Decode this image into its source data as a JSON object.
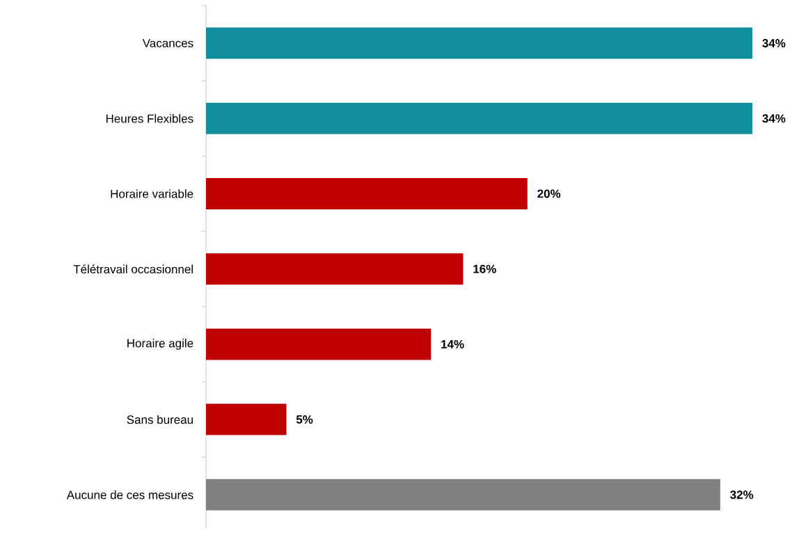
{
  "chart_data": {
    "type": "bar",
    "orientation": "horizontal",
    "categories": [
      "Vacances",
      "Heures Flexibles",
      "Horaire variable",
      "Télétravail occasionnel",
      "Horaire agile",
      "Sans bureau",
      "Aucune de ces mesures"
    ],
    "values": [
      34,
      34,
      20,
      16,
      14,
      5,
      32
    ],
    "colors": [
      "#118e9b",
      "#118e9b",
      "#c00000",
      "#c00000",
      "#c00000",
      "#c00000",
      "#808080"
    ],
    "value_labels": [
      "34%",
      "34%",
      "20%",
      "16%",
      "14%",
      "5%",
      "32%"
    ]
  }
}
